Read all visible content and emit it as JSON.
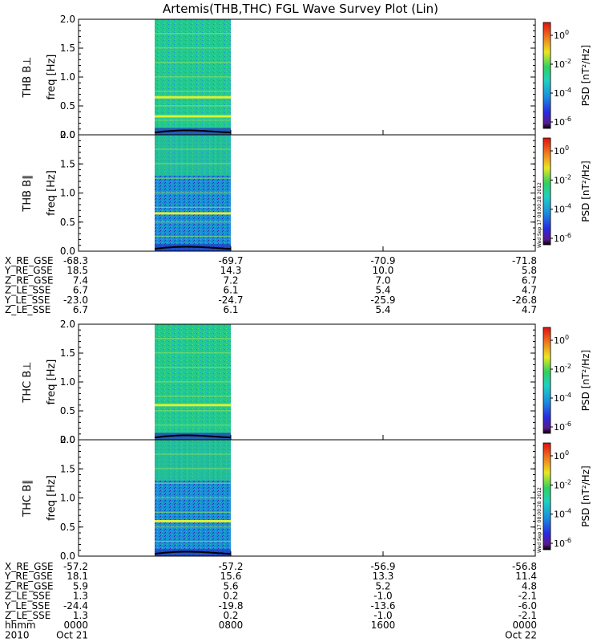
{
  "title": "Artemis(THB,THC) FGL Wave Survey Plot (Lin)",
  "stamp": "Wed Sep 17 08:00:28 2012",
  "colors": {
    "data_region_base": "#23c98e",
    "line": "#000000"
  },
  "chart_data": [
    {
      "type": "heatmap",
      "panel": "THB B⊥",
      "ylabel": [
        "THB B⊥",
        "freq [Hz]"
      ],
      "ylim": [
        0.0,
        2.0
      ],
      "yticks": [
        "0.0",
        "0.5",
        "1.0",
        "1.5",
        "2.0"
      ],
      "data_time_range_hours": [
        0,
        24
      ],
      "data_coverage_hours": [
        4.0,
        8.0
      ],
      "zlabel": "PSD [nT²/Hz]",
      "ztick_exponents": [
        "0",
        "-2",
        "-4",
        "-6"
      ],
      "bright_bands_hz": [
        0.65,
        0.32
      ],
      "contour_hz_approx": [
        0.05,
        0.08,
        0.1,
        0.09,
        0.07,
        0.05
      ]
    },
    {
      "type": "heatmap",
      "panel": "THB B∥",
      "ylabel": [
        "THB B∥",
        "freq [Hz]"
      ],
      "ylim": [
        0.0,
        2.0
      ],
      "yticks": [
        "0.0",
        "0.5",
        "1.0",
        "1.5",
        "2.0"
      ],
      "data_coverage_hours": [
        4.0,
        8.0
      ],
      "zlabel": "PSD [nT²/Hz]",
      "ztick_exponents": [
        "0",
        "-2",
        "-4",
        "-6"
      ],
      "bright_bands_hz": [
        0.65
      ]
    },
    {
      "type": "heatmap",
      "panel": "THC B⊥",
      "ylabel": [
        "THC B⊥",
        "freq [Hz]"
      ],
      "ylim": [
        0.0,
        2.0
      ],
      "yticks": [
        "0.0",
        "0.5",
        "1.0",
        "1.5",
        "2.0"
      ],
      "data_coverage_hours": [
        4.0,
        8.0
      ],
      "zlabel": "PSD [nT²/Hz]",
      "ztick_exponents": [
        "0",
        "-2",
        "-4",
        "-6"
      ],
      "bright_bands_hz": [
        0.6
      ]
    },
    {
      "type": "heatmap",
      "panel": "THC B∥",
      "ylabel": [
        "THC B∥",
        "freq [Hz]"
      ],
      "ylim": [
        0.0,
        2.0
      ],
      "yticks": [
        "0.0",
        "0.5",
        "1.0",
        "1.5",
        "2.0"
      ],
      "data_coverage_hours": [
        4.0,
        8.0
      ],
      "zlabel": "PSD [nT²/Hz]",
      "ztick_exponents": [
        "0",
        "-2",
        "-4",
        "-6"
      ],
      "bright_bands_hz": [
        0.6
      ]
    }
  ],
  "eph_b": {
    "rows": [
      {
        "label": "X_RE_GSE",
        "vals": [
          "-68.3",
          "-69.7",
          "-70.9",
          "-71.8"
        ]
      },
      {
        "label": "Y_RE_GSE",
        "vals": [
          "18.5",
          "14.3",
          "10.0",
          "5.8"
        ]
      },
      {
        "label": "Z_RE_GSE",
        "vals": [
          "7.4",
          "7.2",
          "7.0",
          "6.7"
        ]
      },
      {
        "label": "Z_LE_SSE",
        "vals": [
          "6.7",
          "6.1",
          "5.4",
          "4.7"
        ]
      },
      {
        "label": "Y_LE_SSE",
        "vals": [
          "-23.0",
          "-24.7",
          "-25.9",
          "-26.8"
        ]
      },
      {
        "label": "Z_LE_SSE",
        "vals": [
          "6.7",
          "6.1",
          "5.4",
          "4.7"
        ]
      }
    ]
  },
  "eph_c": {
    "rows": [
      {
        "label": "X_RE_GSE",
        "vals": [
          "-57.2",
          "-57.2",
          "-56.9",
          "-56.8"
        ]
      },
      {
        "label": "Y_RE_GSE",
        "vals": [
          "18.1",
          "15.6",
          "13.3",
          "11.4"
        ]
      },
      {
        "label": "Z_RE_GSE",
        "vals": [
          "5.9",
          "5.6",
          "5.2",
          "4.8"
        ]
      },
      {
        "label": "Z_LE_SSE",
        "vals": [
          "1.3",
          "0.2",
          "-1.0",
          "-2.1"
        ]
      },
      {
        "label": "Y_LE_SSE",
        "vals": [
          "-24.4",
          "-19.8",
          "-13.6",
          "-6.0"
        ]
      },
      {
        "label": "Z_LE_SSE",
        "vals": [
          "1.3",
          "0.2",
          "-1.0",
          "-2.1"
        ]
      },
      {
        "label": "hhmm",
        "vals": [
          "0000",
          "0800",
          "1600",
          "0000"
        ]
      },
      {
        "label": "2010",
        "vals": [
          "Oct 21",
          "",
          "",
          "Oct 22"
        ]
      }
    ]
  }
}
